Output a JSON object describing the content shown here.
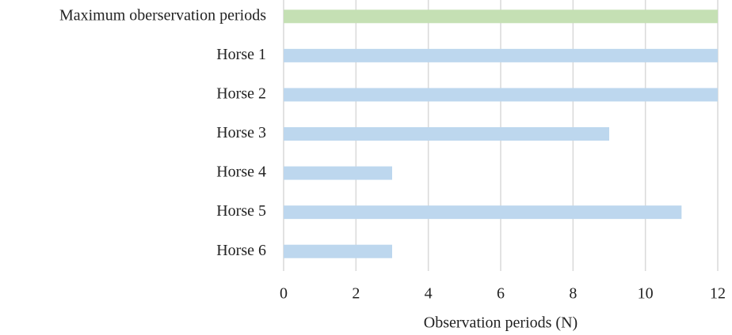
{
  "chart_data": {
    "type": "bar",
    "orientation": "horizontal",
    "categories": [
      "Maximum oberservation periods",
      "Horse 1",
      "Horse 2",
      "Horse 3",
      "Horse 4",
      "Horse 5",
      "Horse 6"
    ],
    "values": [
      12,
      12,
      12,
      9,
      3,
      11,
      3
    ],
    "colors": [
      "#c5e0b4",
      "#bdd7ee",
      "#bdd7ee",
      "#bdd7ee",
      "#bdd7ee",
      "#bdd7ee",
      "#bdd7ee"
    ],
    "xlabel": "Observation periods (N)",
    "xlim": [
      0,
      12
    ],
    "xticks": [
      0,
      2,
      4,
      6,
      8,
      10,
      12
    ],
    "grid": true
  }
}
